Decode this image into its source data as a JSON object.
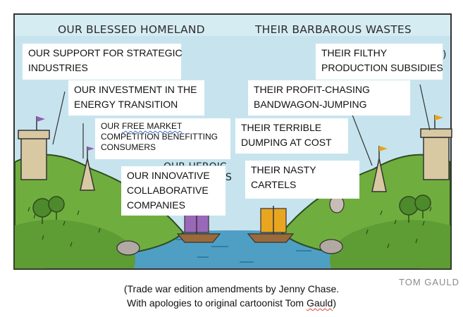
{
  "headings": {
    "left": "OUR BLESSED HOMELAND",
    "right": "THEIR BARBAROUS WASTES"
  },
  "labels": {
    "strategic_1": "OUR SUPPORT FOR STRATEGIC",
    "strategic_2": "INDUSTRIES",
    "energy_1": "OUR INVESTMENT IN THE",
    "energy_2": "ENERGY TRANSITION",
    "market_our": "OUR ",
    "market_free": "FREE MARKET",
    "market_2": "COMPETITION BENEFITTING",
    "market_3": "CONSUMERS",
    "innov_1": "OUR INNOVATIVE",
    "innov_2": "COLLABORATIVE",
    "innov_3": "COMPANIES",
    "filthy_1": "THEIR FILTHY",
    "filthy_2": "PRODUCTION SUBSIDIES",
    "profit_1": "THEIR PROFIT-CHASING",
    "profit_2": "BANDWAGON-JUMPING",
    "dumping_1": "THEIR TERRIBLE",
    "dumping_2": "DUMPING AT COST",
    "cartels_1": "THEIR NASTY",
    "cartels_2": "CARTELS"
  },
  "fragments": {
    "heroic": "OUR HEROIC",
    "s": "S",
    "paren": ")"
  },
  "credit": "TOM GAULD",
  "caption": {
    "line1": "(Trade war edition amendments by Jenny Chase.",
    "line2_a": "With apologies to original cartoonist Tom ",
    "line2_b": "Gauld",
    "line2_c": ")"
  },
  "colors": {
    "sky": "#c7e4ee",
    "hill_green": "#6fae3e",
    "hill_dark": "#4c8a2c",
    "water": "#4f9fc4",
    "tower": "#d8c9a3",
    "left_flag": "#8f5fb0",
    "right_flag": "#e8a41c",
    "left_sail": "#9a68b8",
    "right_sail": "#e9a520",
    "boat": "#9b6a3c"
  }
}
